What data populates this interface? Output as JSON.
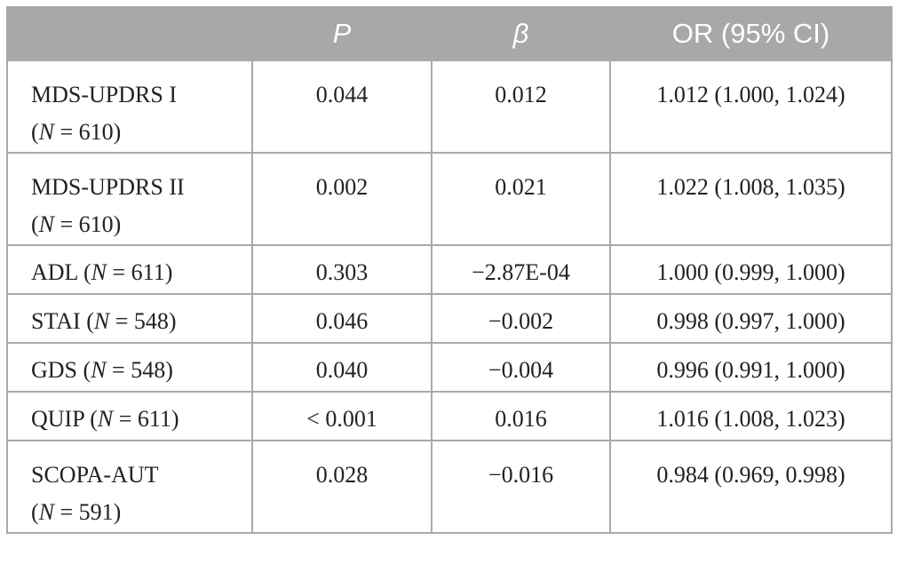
{
  "table": {
    "header": [
      "P",
      "β",
      "OR (95% CI)"
    ],
    "rows": [
      [
        "MDS-UPDRS I (N = 610)",
        "0.044",
        "0.012",
        "1.012 (1.000, 1.024)"
      ],
      [
        "MDS-UPDRS II (N = 610)",
        "0.002",
        "0.021",
        "1.022 (1.008, 1.035)"
      ],
      [
        "ADL (N = 611)",
        "0.303",
        "−2.87E-04",
        "1.000 (0.999, 1.000)"
      ],
      [
        "STAI (N = 548)",
        "0.046",
        "−0.002",
        "0.998 (0.997, 1.000)"
      ],
      [
        "GDS (N = 548)",
        "0.040",
        "−0.004",
        "0.996 (0.991, 1.000)"
      ],
      [
        "QUIP (N = 611)",
        "< 0.001",
        "0.016",
        "1.016 (1.008, 1.023)"
      ],
      [
        "SCOPA-AUT (N = 591)",
        "0.028",
        "−0.016",
        "0.984 (0.969, 0.998)"
      ]
    ]
  }
}
